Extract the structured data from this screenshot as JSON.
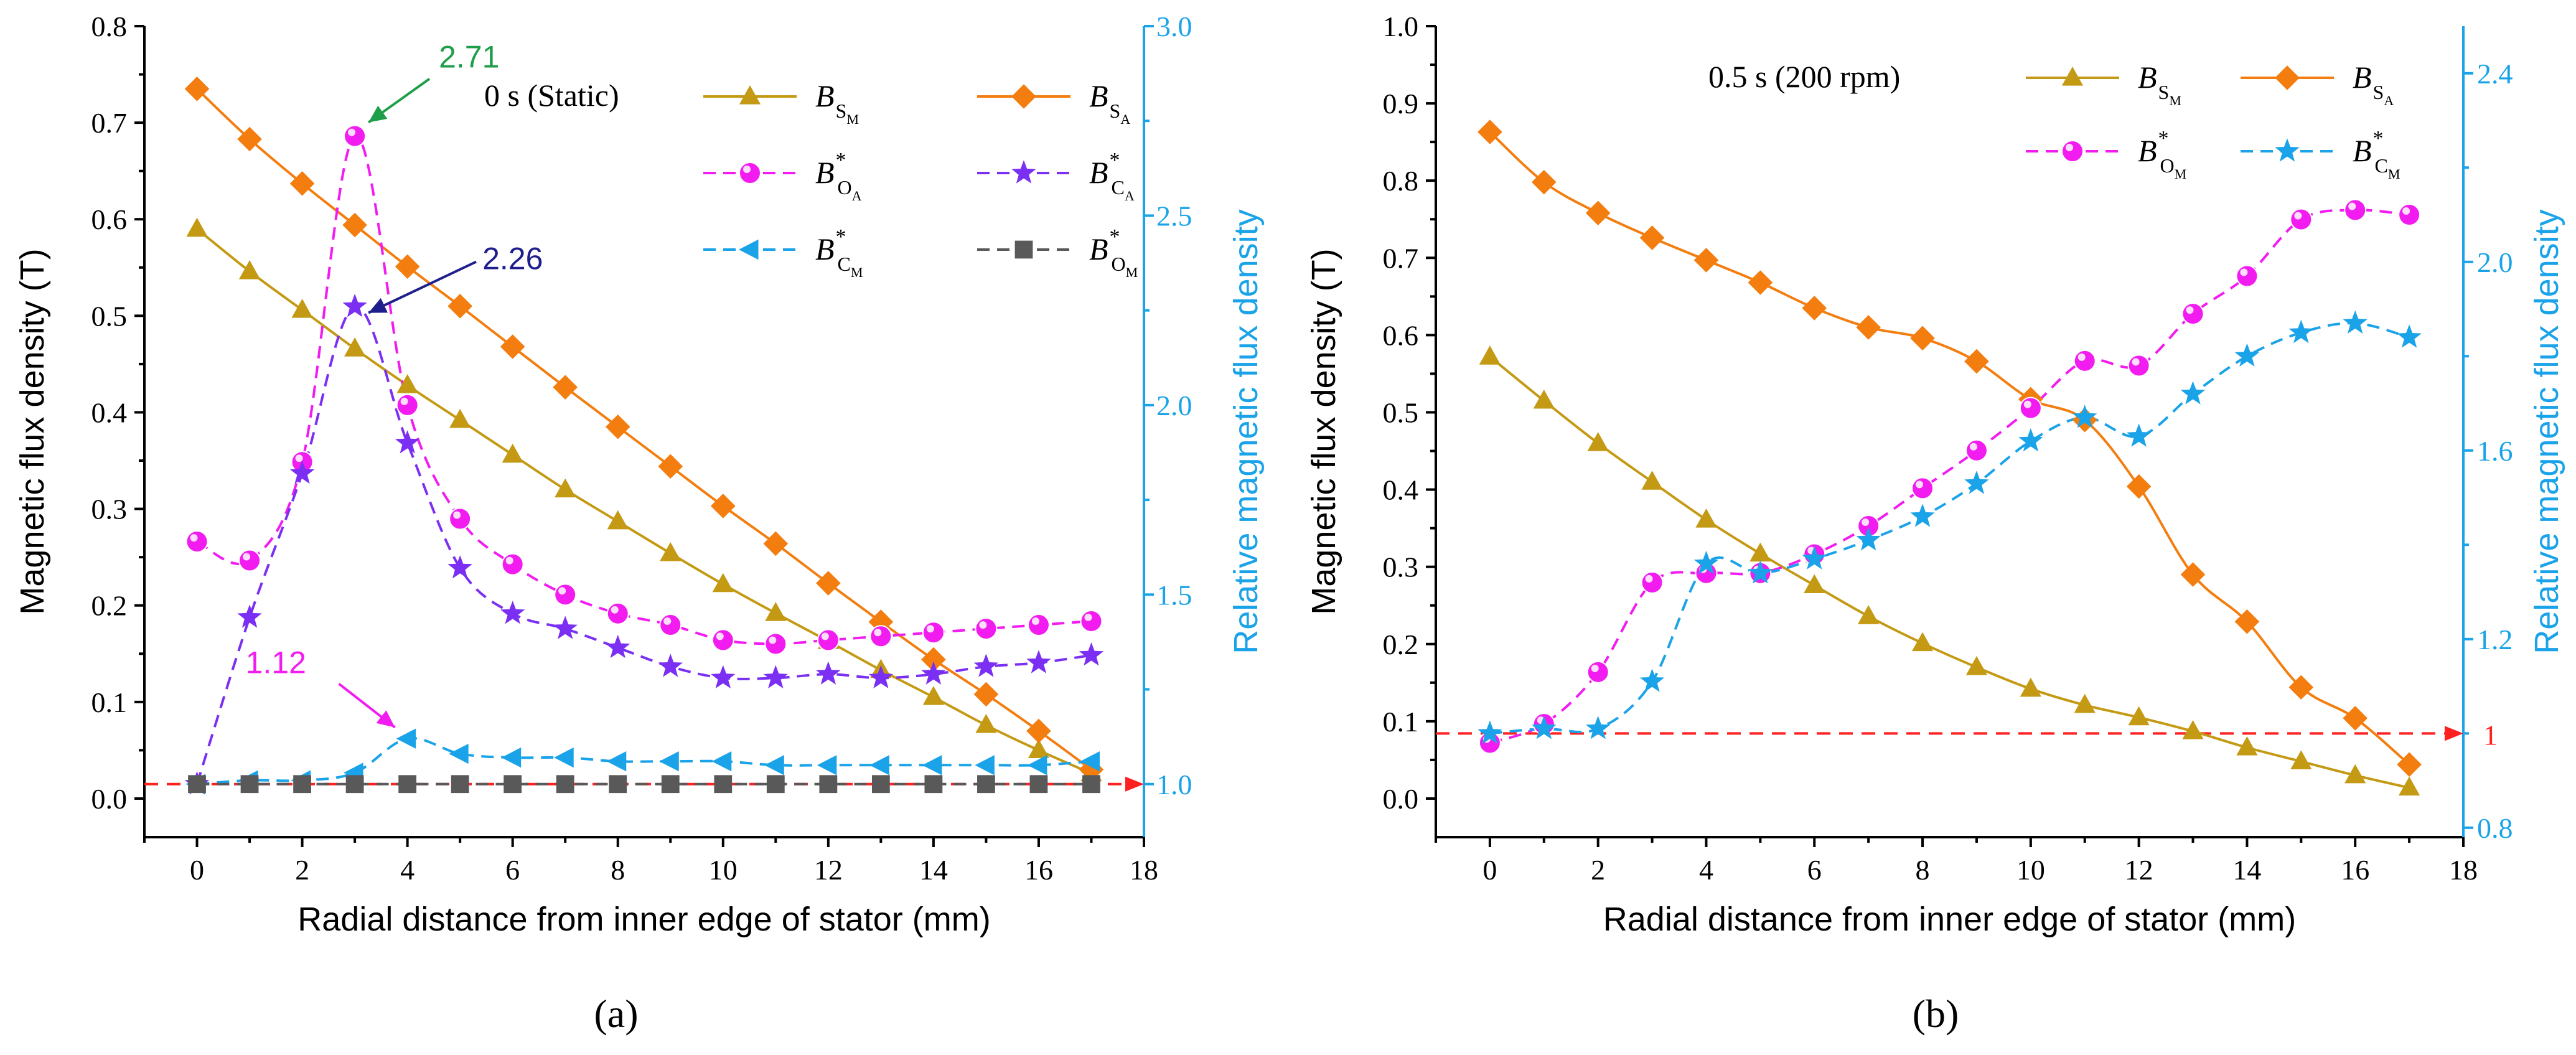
{
  "chart_data": [
    {
      "type": "line",
      "panel_label": "(a)",
      "title": "0 s (Static)",
      "xlabel": "Radial distance from inner edge of stator (mm)",
      "ylabel": "Magnetic flux density (T)",
      "y2label": "Relative magnetic flux density",
      "xlim": [
        -1,
        18
      ],
      "ylim": [
        -0.04,
        0.8
      ],
      "y2lim": [
        0.86,
        3.0
      ],
      "xticks": [
        0,
        2,
        4,
        6,
        8,
        10,
        12,
        14,
        16,
        18
      ],
      "yticks": [
        0.0,
        0.1,
        0.2,
        0.3,
        0.4,
        0.5,
        0.6,
        0.7,
        0.8
      ],
      "yticklabels": [
        "0.0",
        "0.1",
        "0.2",
        "0.3",
        "0.4",
        "0.5",
        "0.6",
        "0.7",
        "0.8"
      ],
      "y2ticks": [
        1.0,
        1.5,
        2.0,
        2.5,
        3.0
      ],
      "y2ticklabels": [
        "1.0",
        "1.5",
        "2.0",
        "2.5",
        "3.0"
      ],
      "x": [
        0,
        1,
        2,
        3,
        4,
        5,
        6,
        7,
        8,
        9,
        10,
        11,
        12,
        13,
        14,
        15,
        16,
        17
      ],
      "series": [
        {
          "name": "B_SM",
          "label_main": "B",
          "label_sub": "S",
          "label_subsub": "M",
          "star": false,
          "axis": "left",
          "marker": "triangle",
          "color": "#c49a14",
          "dash": false,
          "values": [
            0.59,
            0.546,
            0.506,
            0.466,
            0.428,
            0.392,
            0.356,
            0.32,
            0.287,
            0.254,
            0.222,
            0.192,
            0.163,
            0.133,
            0.105,
            0.076,
            0.05,
            0.026
          ]
        },
        {
          "name": "B_SA",
          "label_main": "B",
          "label_sub": "S",
          "label_subsub": "A",
          "star": false,
          "axis": "left",
          "marker": "diamond",
          "color": "#f47d0f",
          "dash": false,
          "values": [
            0.735,
            0.683,
            0.637,
            0.594,
            0.551,
            0.51,
            0.468,
            0.426,
            0.385,
            0.344,
            0.303,
            0.264,
            0.223,
            0.183,
            0.144,
            0.108,
            0.07,
            0.03
          ]
        },
        {
          "name": "B*_OA",
          "label_main": "B",
          "label_sub": "O",
          "label_subsub": "A",
          "star": true,
          "axis": "right",
          "marker": "circle",
          "color": "#f21cf0",
          "dash": true,
          "values": [
            1.64,
            1.59,
            1.85,
            2.71,
            2.0,
            1.7,
            1.58,
            1.5,
            1.45,
            1.42,
            1.38,
            1.37,
            1.38,
            1.39,
            1.4,
            1.41,
            1.42,
            1.43
          ]
        },
        {
          "name": "B*_CA",
          "label_main": "B",
          "label_sub": "C",
          "label_subsub": "A",
          "star": true,
          "axis": "right",
          "marker": "star",
          "color": "#7b2ff2",
          "dash": true,
          "values": [
            1.0,
            1.44,
            1.82,
            2.26,
            1.9,
            1.57,
            1.45,
            1.41,
            1.36,
            1.31,
            1.28,
            1.28,
            1.29,
            1.28,
            1.29,
            1.31,
            1.32,
            1.34
          ]
        },
        {
          "name": "B*_CM",
          "label_main": "B",
          "label_sub": "C",
          "label_subsub": "M",
          "star": true,
          "axis": "right",
          "marker": "triangle-left",
          "color": "#1aa3e8",
          "dash": true,
          "values": [
            1.0,
            1.01,
            1.01,
            1.03,
            1.12,
            1.08,
            1.07,
            1.07,
            1.06,
            1.06,
            1.06,
            1.05,
            1.05,
            1.05,
            1.05,
            1.05,
            1.05,
            1.06
          ]
        },
        {
          "name": "B*_OM",
          "label_main": "B",
          "label_sub": "O",
          "label_subsub": "M",
          "star": true,
          "axis": "right",
          "marker": "square",
          "color": "#595959",
          "dash": true,
          "values": [
            1.0,
            1.0,
            1.0,
            1.0,
            1.0,
            1.0,
            1.0,
            1.0,
            1.0,
            1.0,
            1.0,
            1.0,
            1.0,
            1.0,
            1.0,
            1.0,
            1.0,
            1.0
          ]
        }
      ],
      "reference_line": {
        "axis": "right",
        "value": 1.0,
        "color": "#ff2020",
        "arrow": true,
        "label": ""
      },
      "annotations": [
        {
          "text": "2.71",
          "color": "#1f9e4a",
          "x": 3,
          "y2": 2.71
        },
        {
          "text": "2.26",
          "color": "#1e1e8c",
          "x": 3,
          "y2": 2.26
        },
        {
          "text": "1.12",
          "color": "#f21cf0",
          "x": 4,
          "y2": 1.12
        }
      ]
    },
    {
      "type": "line",
      "panel_label": "(b)",
      "title": "0.5 s (200 rpm)",
      "xlabel": "Radial distance from inner edge of stator (mm)",
      "ylabel": "Magnetic flux density (T)",
      "y2label": "Relative magnetic flux density",
      "xlim": [
        -1,
        18
      ],
      "ylim": [
        -0.05,
        1.0
      ],
      "y2lim": [
        0.78,
        2.5
      ],
      "xticks": [
        0,
        2,
        4,
        6,
        8,
        10,
        12,
        14,
        16,
        18
      ],
      "yticks": [
        0.0,
        0.1,
        0.2,
        0.3,
        0.4,
        0.5,
        0.6,
        0.7,
        0.8,
        0.9,
        1.0
      ],
      "yticklabels": [
        "0.0",
        "0.1",
        "0.2",
        "0.3",
        "0.4",
        "0.5",
        "0.6",
        "0.7",
        "0.8",
        "0.9",
        "1.0"
      ],
      "y2ticks": [
        0.8,
        1.2,
        1.6,
        2.0,
        2.4
      ],
      "y2ticklabels": [
        "0.8",
        "1.2",
        "1.6",
        "2.0",
        "2.4"
      ],
      "x": [
        0,
        1,
        2,
        3,
        4,
        5,
        6,
        7,
        8,
        9,
        10,
        11,
        12,
        13,
        14,
        15,
        16,
        17
      ],
      "series": [
        {
          "name": "B_SM",
          "label_main": "B",
          "label_sub": "S",
          "label_subsub": "M",
          "star": false,
          "axis": "left",
          "marker": "triangle",
          "color": "#c49a14",
          "dash": false,
          "values": [
            0.572,
            0.515,
            0.46,
            0.41,
            0.361,
            0.317,
            0.276,
            0.236,
            0.201,
            0.17,
            0.142,
            0.121,
            0.105,
            0.087,
            0.066,
            0.048,
            0.03,
            0.014
          ]
        },
        {
          "name": "B_SA",
          "label_main": "B",
          "label_sub": "S",
          "label_subsub": "A",
          "star": false,
          "axis": "left",
          "marker": "diamond",
          "color": "#f47d0f",
          "dash": false,
          "values": [
            0.863,
            0.798,
            0.758,
            0.726,
            0.697,
            0.668,
            0.635,
            0.61,
            0.596,
            0.566,
            0.517,
            0.49,
            0.404,
            0.29,
            0.229,
            0.144,
            0.104,
            0.044
          ]
        },
        {
          "name": "B*_OM",
          "label_main": "B",
          "label_sub": "O",
          "label_subsub": "M",
          "star": true,
          "axis": "right",
          "marker": "circle",
          "color": "#f21cf0",
          "dash": true,
          "values": [
            0.98,
            1.02,
            1.13,
            1.32,
            1.34,
            1.34,
            1.38,
            1.44,
            1.52,
            1.6,
            1.69,
            1.79,
            1.78,
            1.89,
            1.97,
            2.09,
            2.11,
            2.1
          ]
        },
        {
          "name": "B*_CM",
          "label_main": "B",
          "label_sub": "C",
          "label_subsub": "M",
          "star": true,
          "axis": "right",
          "marker": "star",
          "color": "#1aa3e8",
          "dash": true,
          "values": [
            1.0,
            1.01,
            1.01,
            1.11,
            1.36,
            1.34,
            1.37,
            1.41,
            1.46,
            1.53,
            1.62,
            1.67,
            1.63,
            1.72,
            1.8,
            1.85,
            1.87,
            1.84
          ]
        }
      ],
      "reference_line": {
        "axis": "right",
        "value": 1.0,
        "color": "#ff2020",
        "arrow": true,
        "label": "1"
      },
      "annotations": []
    }
  ]
}
